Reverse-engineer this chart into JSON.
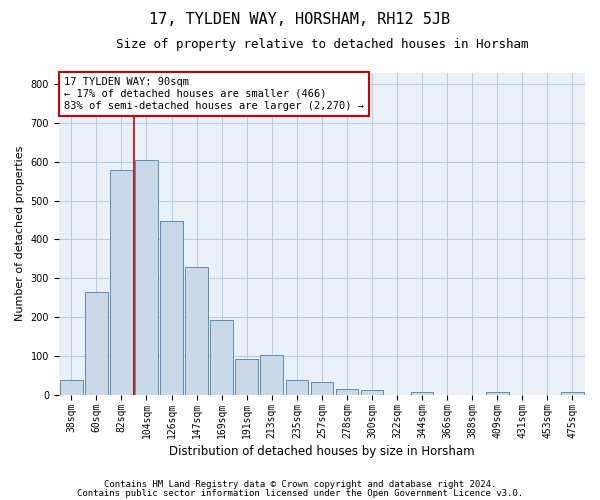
{
  "title": "17, TYLDEN WAY, HORSHAM, RH12 5JB",
  "subtitle": "Size of property relative to detached houses in Horsham",
  "xlabel": "Distribution of detached houses by size in Horsham",
  "ylabel": "Number of detached properties",
  "footnote1": "Contains HM Land Registry data © Crown copyright and database right 2024.",
  "footnote2": "Contains public sector information licensed under the Open Government Licence v3.0.",
  "categories": [
    "38sqm",
    "60sqm",
    "82sqm",
    "104sqm",
    "126sqm",
    "147sqm",
    "169sqm",
    "191sqm",
    "213sqm",
    "235sqm",
    "257sqm",
    "278sqm",
    "300sqm",
    "322sqm",
    "344sqm",
    "366sqm",
    "388sqm",
    "409sqm",
    "431sqm",
    "453sqm",
    "475sqm"
  ],
  "values": [
    37,
    265,
    580,
    605,
    447,
    328,
    193,
    92,
    103,
    38,
    33,
    15,
    11,
    0,
    7,
    0,
    0,
    7,
    0,
    0,
    7
  ],
  "bar_color": "#c9d9e8",
  "bar_edge_color": "#5b8db8",
  "vline_color": "#cc0000",
  "annotation_text": "17 TYLDEN WAY: 90sqm\n← 17% of detached houses are smaller (466)\n83% of semi-detached houses are larger (2,270) →",
  "annotation_box_color": "#cc0000",
  "ylim": [
    0,
    830
  ],
  "yticks": [
    0,
    100,
    200,
    300,
    400,
    500,
    600,
    700,
    800
  ],
  "grid_color": "#b0c4de",
  "bg_color": "#eaf0f8",
  "title_fontsize": 11,
  "subtitle_fontsize": 9,
  "ylabel_fontsize": 8,
  "xlabel_fontsize": 8.5,
  "tick_fontsize": 7,
  "annotation_fontsize": 7.5,
  "footnote_fontsize": 6.5
}
